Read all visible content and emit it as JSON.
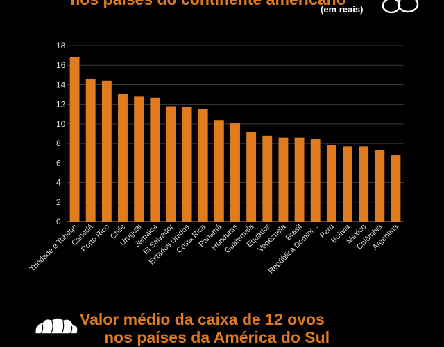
{
  "header": {
    "title_line2": "nos países do continente americano",
    "subtitle": "(em reais)"
  },
  "footer": {
    "title_line1": "Valor médio da caixa de 12 ovos",
    "title_line2": "nos países da América do Sul"
  },
  "chart_data": {
    "type": "bar",
    "categories": [
      "Trindade e Tobago",
      "Canadá",
      "Porto Rico",
      "Chile",
      "Uruguai",
      "Jamaica",
      "El Salvador",
      "Estados Unidos",
      "Costa Rica",
      "Panamá",
      "Honduras",
      "Guatemala",
      "Equador",
      "Venezuela",
      "Brasil",
      "República Domini...",
      "Peru",
      "Bolívia",
      "México",
      "Colômbia",
      "Argentina"
    ],
    "values": [
      16.8,
      14.6,
      14.4,
      13.1,
      12.8,
      12.7,
      11.8,
      11.7,
      11.5,
      10.4,
      10.1,
      9.2,
      8.8,
      8.6,
      8.6,
      8.5,
      7.8,
      7.7,
      7.7,
      7.3,
      6.8
    ],
    "yticks": [
      0,
      2,
      4,
      6,
      8,
      10,
      12,
      14,
      16,
      18
    ],
    "ylim": [
      0,
      18
    ],
    "grid": true,
    "bar_color": "#e07b1f"
  }
}
